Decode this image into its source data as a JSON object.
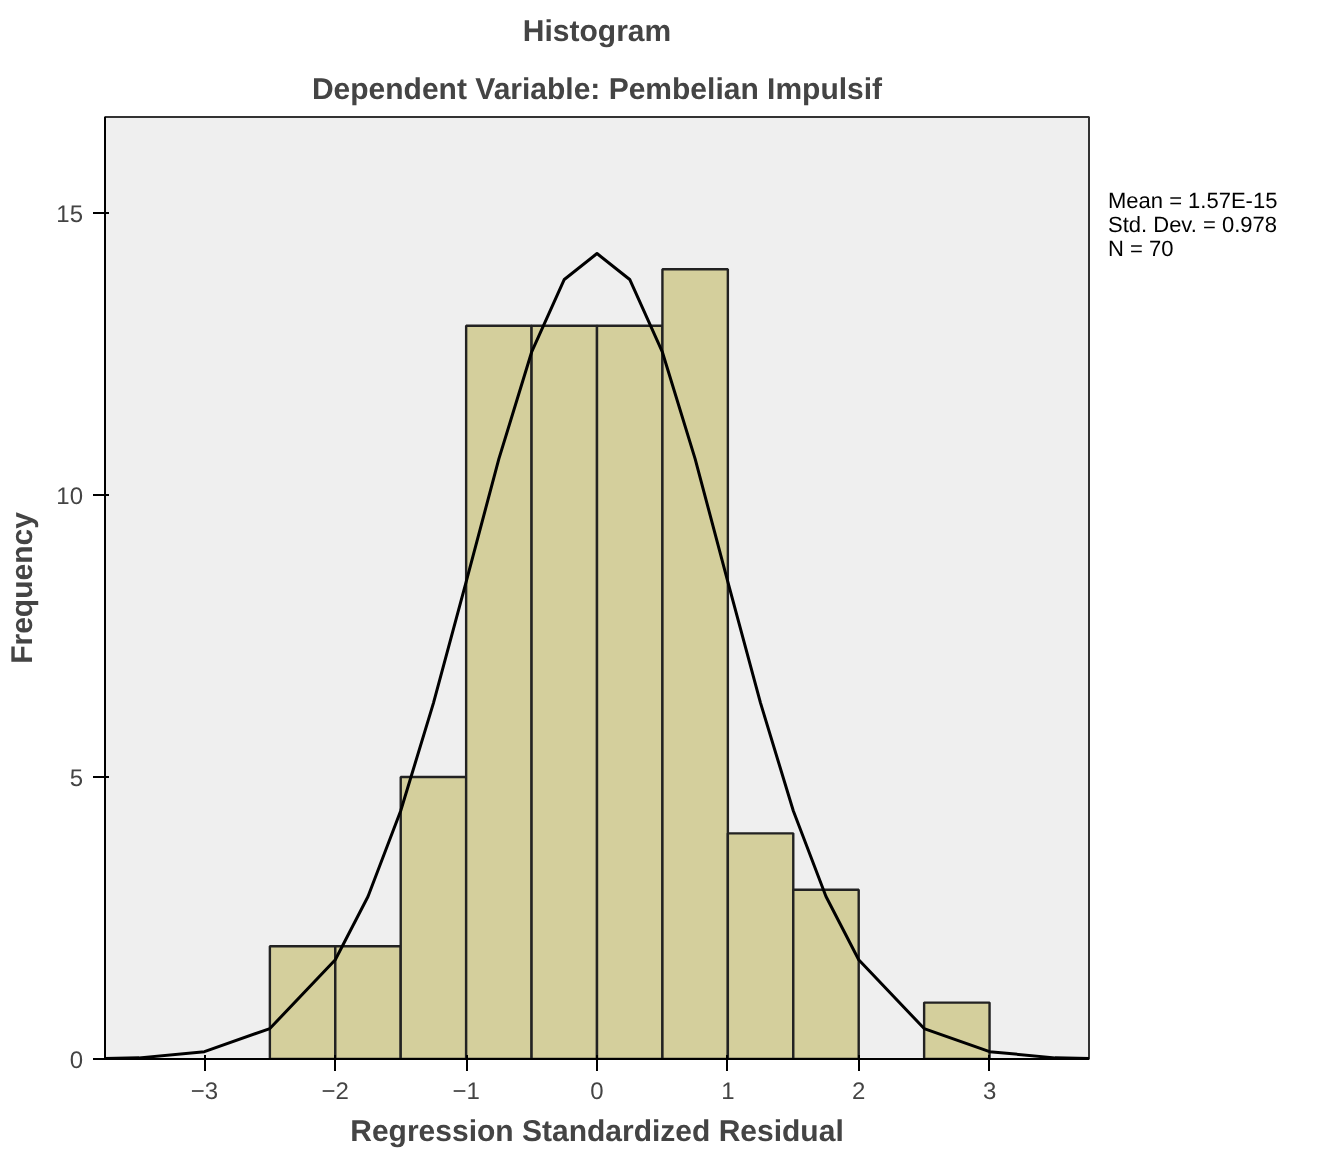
{
  "chart_data": {
    "type": "histogram",
    "title": "Histogram",
    "subtitle": "Dependent Variable: Pembelian Impulsif",
    "xlabel": "Regression Standardized Residual",
    "ylabel": "Frequency",
    "bins": [
      -2.5,
      -2,
      -1.5,
      -1,
      -0.5,
      0,
      0.5,
      1,
      1.5,
      2,
      2.5,
      3
    ],
    "values": [
      2,
      2,
      5,
      13,
      13,
      13,
      14,
      4,
      3,
      0,
      1
    ],
    "color": "#d4cf9c",
    "series": [
      {
        "type": "line",
        "color": "#000000",
        "x": [
          -3.76,
          -3.5,
          -3,
          -2.5,
          -2,
          -1.75,
          -1.5,
          -1.25,
          -1,
          -0.75,
          -0.5,
          -0.25,
          0,
          0.25,
          0.5,
          0.75,
          1,
          1.25,
          1.5,
          1.75,
          2,
          2.5,
          3,
          3.5,
          3.76
        ],
        "values": [
          0.01,
          0.02,
          0.13,
          0.54,
          1.76,
          2.88,
          4.4,
          6.31,
          8.46,
          10.64,
          12.53,
          13.82,
          14.28,
          13.82,
          12.53,
          10.64,
          8.46,
          6.31,
          4.4,
          2.88,
          1.76,
          0.54,
          0.13,
          0.02,
          0.01
        ]
      }
    ],
    "annotations": [
      "Mean = 1.57E-15",
      "Std. Dev. = 0.978",
      "N = 70"
    ],
    "xlim": [
      -3.76,
      3.76
    ],
    "ylim": [
      0,
      16.7
    ],
    "xticks": [
      -3,
      -2,
      -1,
      0,
      1,
      2,
      3
    ],
    "yticks": [
      0,
      5,
      10,
      15
    ],
    "grid": false
  }
}
